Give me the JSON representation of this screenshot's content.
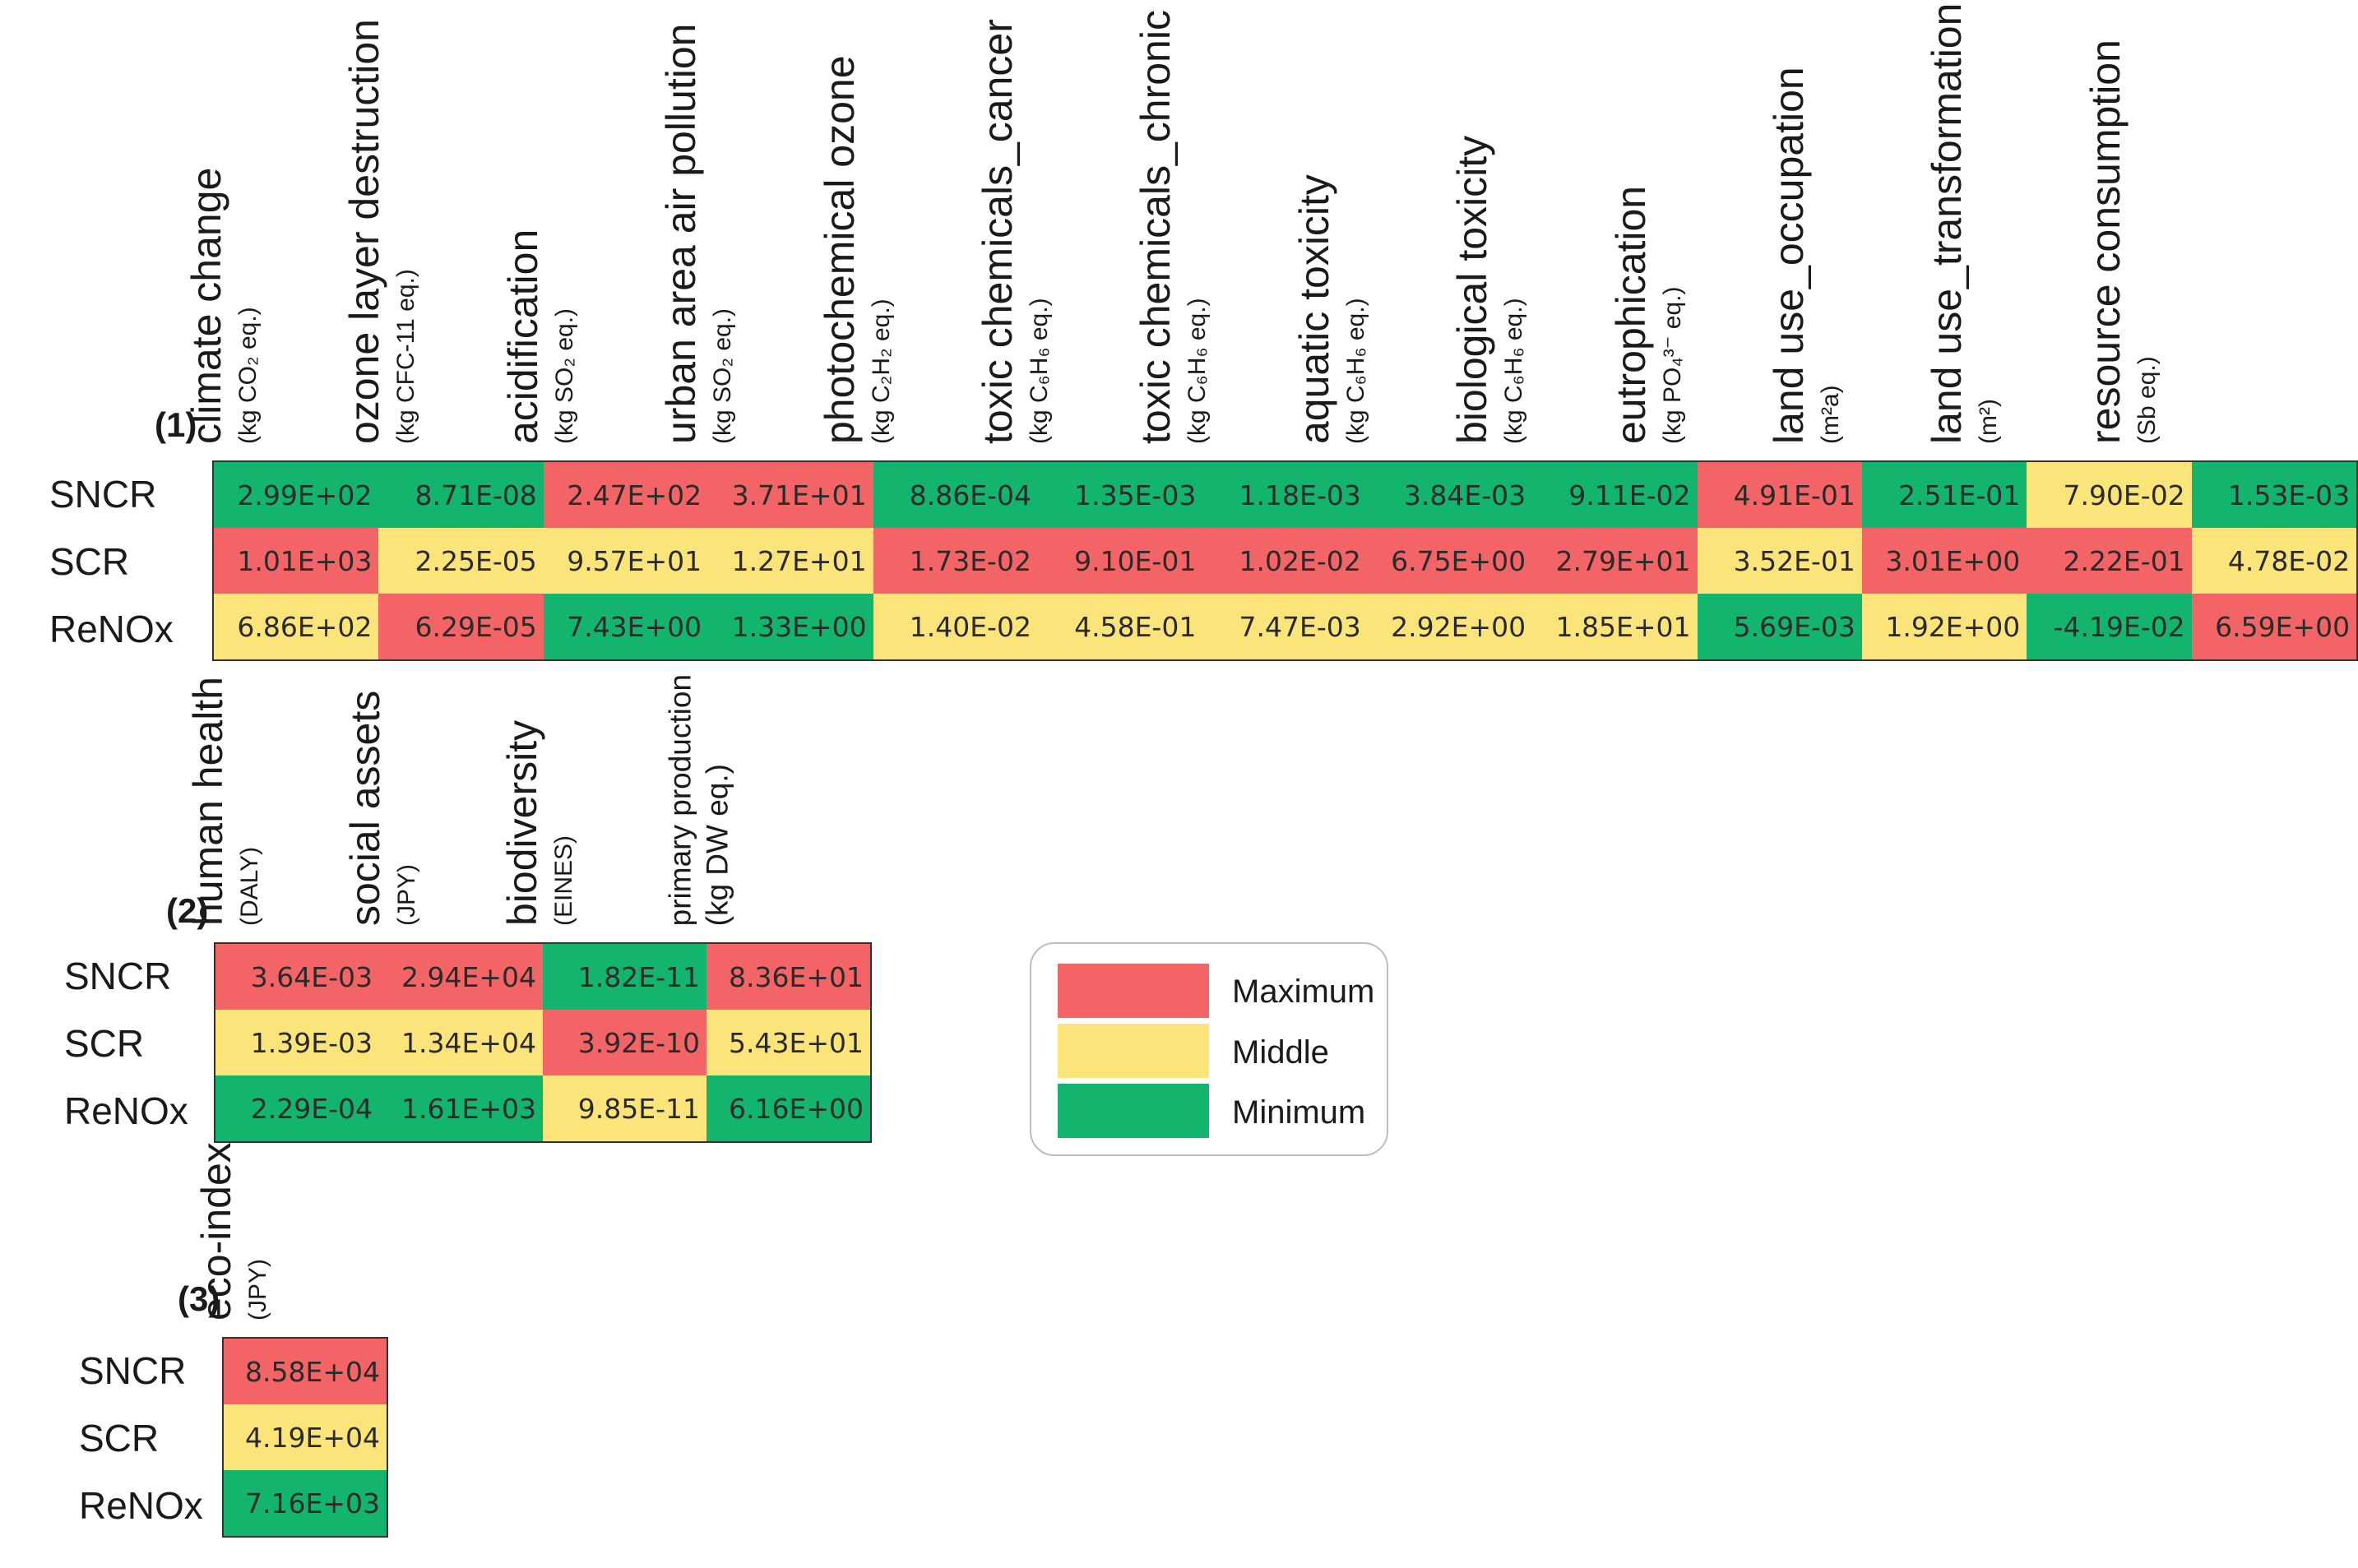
{
  "colors": {
    "Maximum": "#f26466",
    "Middle": "#fbe57a",
    "Minimum": "#13b46e"
  },
  "legend": {
    "items": [
      "Maximum",
      "Middle",
      "Minimum"
    ]
  },
  "chart_data": [
    {
      "type": "table",
      "label": "(1)",
      "rows": [
        "SNCR",
        "SCR",
        "ReNOx"
      ],
      "columns": [
        {
          "title": "climate change",
          "unit": "(kg CO₂ eq.)",
          "values": [
            "2.99E+02",
            "1.01E+03",
            "6.86E+02"
          ],
          "ranks": [
            "Minimum",
            "Maximum",
            "Middle"
          ]
        },
        {
          "title": "ozone layer destruction",
          "unit": "(kg CFC-11 eq.)",
          "values": [
            "8.71E-08",
            "2.25E-05",
            "6.29E-05"
          ],
          "ranks": [
            "Minimum",
            "Middle",
            "Maximum"
          ]
        },
        {
          "title": "acidification",
          "unit": "(kg SO₂ eq.)",
          "values": [
            "2.47E+02",
            "9.57E+01",
            "7.43E+00"
          ],
          "ranks": [
            "Maximum",
            "Middle",
            "Minimum"
          ]
        },
        {
          "title": "urban area air pollution",
          "unit": "(kg SO₂ eq.)",
          "values": [
            "3.71E+01",
            "1.27E+01",
            "1.33E+00"
          ],
          "ranks": [
            "Maximum",
            "Middle",
            "Minimum"
          ]
        },
        {
          "title": "photochemical ozone",
          "unit": "(kg C₂H₂ eq.)",
          "values": [
            "8.86E-04",
            "1.73E-02",
            "1.40E-02"
          ],
          "ranks": [
            "Minimum",
            "Maximum",
            "Middle"
          ]
        },
        {
          "title": "toxic chemicals_cancer",
          "unit": "(kg C₆H₆ eq.)",
          "values": [
            "1.35E-03",
            "9.10E-01",
            "4.58E-01"
          ],
          "ranks": [
            "Minimum",
            "Maximum",
            "Middle"
          ]
        },
        {
          "title": "toxic chemicals_chronic",
          "unit": "(kg C₆H₆ eq.)",
          "values": [
            "1.18E-03",
            "1.02E-02",
            "7.47E-03"
          ],
          "ranks": [
            "Minimum",
            "Maximum",
            "Middle"
          ]
        },
        {
          "title": "aquatic toxicity",
          "unit": "(kg C₆H₆ eq.)",
          "values": [
            "3.84E-03",
            "6.75E+00",
            "2.92E+00"
          ],
          "ranks": [
            "Minimum",
            "Maximum",
            "Middle"
          ]
        },
        {
          "title": "biological toxicity",
          "unit": "(kg C₆H₆ eq.)",
          "values": [
            "9.11E-02",
            "2.79E+01",
            "1.85E+01"
          ],
          "ranks": [
            "Minimum",
            "Maximum",
            "Middle"
          ]
        },
        {
          "title": "eutrophication",
          "unit": "(kg PO₄³⁻ eq.)",
          "values": [
            "4.91E-01",
            "3.52E-01",
            "5.69E-03"
          ],
          "ranks": [
            "Maximum",
            "Middle",
            "Minimum"
          ]
        },
        {
          "title": "land use_occupation",
          "unit": "(m²a)",
          "values": [
            "2.51E-01",
            "3.01E+00",
            "1.92E+00"
          ],
          "ranks": [
            "Minimum",
            "Maximum",
            "Middle"
          ]
        },
        {
          "title": "land use_transformation",
          "unit": "(m²)",
          "values": [
            "7.90E-02",
            "2.22E-01",
            "-4.19E-02"
          ],
          "ranks": [
            "Middle",
            "Maximum",
            "Minimum"
          ]
        },
        {
          "title": "resource consumption",
          "unit": "(Sb eq.)",
          "values": [
            "1.53E-03",
            "4.78E-02",
            "6.59E+00"
          ],
          "ranks": [
            "Minimum",
            "Middle",
            "Maximum"
          ]
        }
      ]
    },
    {
      "type": "table",
      "label": "(2)",
      "rows": [
        "SNCR",
        "SCR",
        "ReNOx"
      ],
      "columns": [
        {
          "title": "human health",
          "unit": "(DALY)",
          "values": [
            "3.64E-03",
            "1.39E-03",
            "2.29E-04"
          ],
          "ranks": [
            "Maximum",
            "Middle",
            "Minimum"
          ]
        },
        {
          "title": "social assets",
          "unit": "(JPY)",
          "values": [
            "2.94E+04",
            "1.34E+04",
            "1.61E+03"
          ],
          "ranks": [
            "Maximum",
            "Middle",
            "Minimum"
          ]
        },
        {
          "title": "biodiversity",
          "unit": "(EINES)",
          "values": [
            "1.82E-11",
            "3.92E-10",
            "9.85E-11"
          ],
          "ranks": [
            "Minimum",
            "Maximum",
            "Middle"
          ]
        },
        {
          "title": "primary production",
          "unit": "(kg DW eq.)",
          "values": [
            "8.36E+01",
            "5.43E+01",
            "6.16E+00"
          ],
          "ranks": [
            "Maximum",
            "Middle",
            "Minimum"
          ]
        }
      ]
    },
    {
      "type": "table",
      "label": "(3)",
      "rows": [
        "SNCR",
        "SCR",
        "ReNOx"
      ],
      "columns": [
        {
          "title": "eco-index",
          "unit": "(JPY)",
          "values": [
            "8.58E+04",
            "4.19E+04",
            "7.16E+03"
          ],
          "ranks": [
            "Maximum",
            "Middle",
            "Minimum"
          ]
        }
      ]
    }
  ]
}
